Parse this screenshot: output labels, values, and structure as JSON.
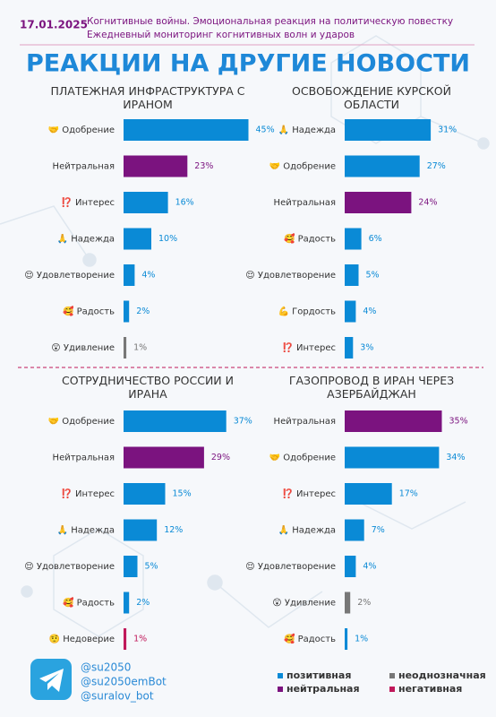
{
  "header": {
    "date": "17.01.2025",
    "subtitle": [
      "Когнитивные войны. Эмоциональная реакция на политическую повестку",
      "Ежедневный мониторинг когнитивных волн и ударов"
    ],
    "title": "РЕАКЦИИ НА ДРУГИЕ НОВОСТИ"
  },
  "chart_data": [
    {
      "type": "bar",
      "title": "ПЛАТЕЖНАЯ ИНФРАСТРУКТУРА С ИРАНОМ",
      "categories": [
        "🤝 Одобрение",
        "Нейтральная",
        "⁉️ Интерес",
        "🙏 Надежда",
        "😌 Удовлетворение",
        "🥰 Радость",
        "😲 Удивление"
      ],
      "values": [
        45,
        23,
        16,
        10,
        4,
        2,
        1
      ],
      "value_labels": [
        "45%",
        "23%",
        "16%",
        "10%",
        "4%",
        "2%",
        "1%"
      ],
      "colors": [
        "#0a8ad6",
        "#7b137f",
        "#0a8ad6",
        "#0a8ad6",
        "#0a8ad6",
        "#0a8ad6",
        "#777777"
      ]
    },
    {
      "type": "bar",
      "title": "ОСВОБОЖДЕНИЕ КУРСКОЙ ОБЛАСТИ",
      "categories": [
        "🙏 Надежда",
        "🤝 Одобрение",
        "Нейтральная",
        "🥰 Радость",
        "😌 Удовлетворение",
        "💪 Гордость",
        "⁉️ Интерес"
      ],
      "values": [
        31,
        27,
        24,
        6,
        5,
        4,
        3
      ],
      "value_labels": [
        "31%",
        "27%",
        "24%",
        "6%",
        "5%",
        "4%",
        "3%"
      ],
      "colors": [
        "#0a8ad6",
        "#0a8ad6",
        "#7b137f",
        "#0a8ad6",
        "#0a8ad6",
        "#0a8ad6",
        "#0a8ad6"
      ]
    },
    {
      "type": "bar",
      "title": "СОТРУДНИЧЕСТВО РОССИИ И ИРАНА",
      "categories": [
        "🤝 Одобрение",
        "Нейтральная",
        "⁉️ Интерес",
        "🙏 Надежда",
        "😌 Удовлетворение",
        "🥰 Радость",
        "🤨 Недоверие"
      ],
      "values": [
        37,
        29,
        15,
        12,
        5,
        2,
        1
      ],
      "value_labels": [
        "37%",
        "29%",
        "15%",
        "12%",
        "5%",
        "2%",
        "1%"
      ],
      "colors": [
        "#0a8ad6",
        "#7b137f",
        "#0a8ad6",
        "#0a8ad6",
        "#0a8ad6",
        "#0a8ad6",
        "#c0185a"
      ]
    },
    {
      "type": "bar",
      "title": "ГАЗОПРОВОД В ИРАН ЧЕРЕЗ АЗЕРБАЙДЖАН",
      "categories": [
        "Нейтральная",
        "🤝 Одобрение",
        "⁉️ Интерес",
        "🙏 Надежда",
        "😌 Удовлетворение",
        "😲 Удивление",
        "🥰 Радость"
      ],
      "values": [
        35,
        34,
        17,
        7,
        4,
        2,
        1
      ],
      "value_labels": [
        "35%",
        "34%",
        "17%",
        "7%",
        "4%",
        "2%",
        "1%"
      ],
      "colors": [
        "#7b137f",
        "#0a8ad6",
        "#0a8ad6",
        "#0a8ad6",
        "#0a8ad6",
        "#777777",
        "#0a8ad6"
      ]
    }
  ],
  "footer": {
    "handles": [
      "@su2050",
      "@su2050emBot",
      "@suralov_bot"
    ]
  },
  "legend": [
    {
      "name": "позитивная",
      "color": "#0a8ad6"
    },
    {
      "name": "неоднозначная",
      "color": "#777777"
    },
    {
      "name": "нейтральная",
      "color": "#7b137f"
    },
    {
      "name": "негативная",
      "color": "#c0185a"
    }
  ]
}
